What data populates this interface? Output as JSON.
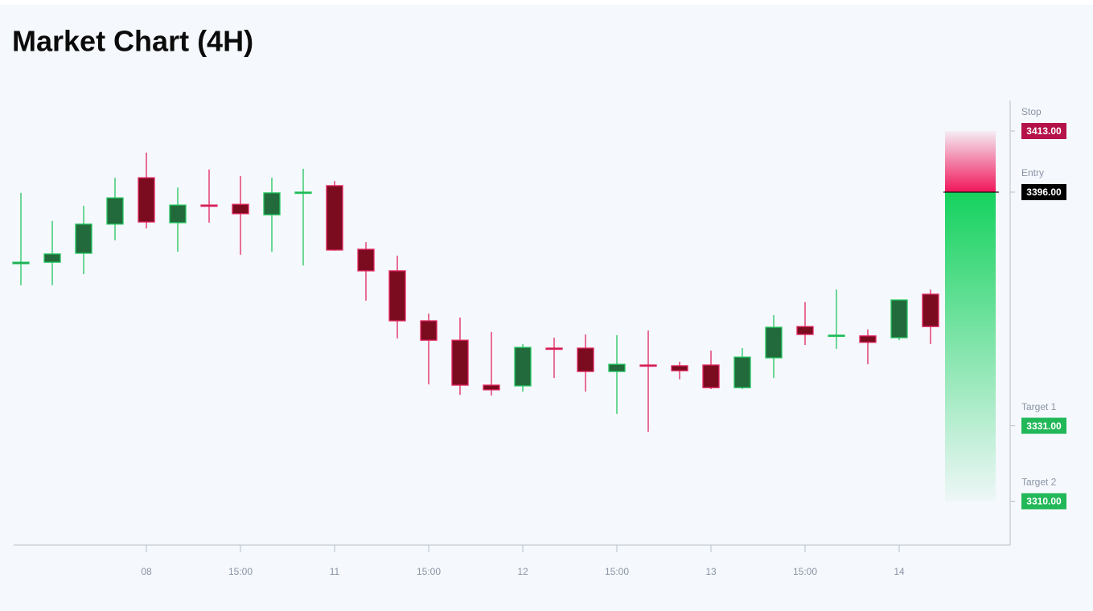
{
  "chart_data": {
    "type": "candlestick",
    "title": "Market Chart (4H)",
    "categories": [
      null,
      null,
      null,
      null,
      "08",
      null,
      null,
      "15:00",
      null,
      null,
      "11",
      null,
      null,
      "15:00",
      null,
      null,
      "12",
      null,
      null,
      "15:00",
      null,
      null,
      "13",
      null,
      null,
      "15:00",
      null,
      null,
      "14",
      null
    ],
    "open": [
      3376.1,
      3376.5,
      3379.0,
      3387.1,
      3400.0,
      3387.5,
      3392.4,
      3392.6,
      3389.7,
      3395.8,
      3397.8,
      3380.1,
      3374.1,
      3360.2,
      3354.8,
      3342.3,
      3342.1,
      3352.6,
      3352.6,
      3346.1,
      3347.9,
      3347.7,
      3347.9,
      3341.6,
      3349.9,
      3358.6,
      3356.0,
      3356.0,
      3355.5,
      3367.6
    ],
    "high": [
      3395.8,
      3388.0,
      3392.2,
      3400.0,
      3407.0,
      3397.3,
      3402.3,
      3400.5,
      3400.0,
      3402.5,
      3399.1,
      3382.1,
      3378.3,
      3362.2,
      3361.1,
      3357.1,
      3353.7,
      3355.5,
      3356.4,
      3356.2,
      3357.5,
      3348.8,
      3351.9,
      3352.6,
      3361.8,
      3365.4,
      3368.9,
      3357.8,
      3366.0,
      3368.9
    ],
    "low": [
      3370.1,
      3370.1,
      3373.2,
      3382.6,
      3385.9,
      3379.4,
      3387.5,
      3378.6,
      3379.4,
      3375.6,
      3379.7,
      3365.8,
      3355.3,
      3342.5,
      3339.6,
      3339.4,
      3340.5,
      3344.3,
      3340.5,
      3334.3,
      3329.3,
      3343.9,
      3341.2,
      3341.2,
      3344.3,
      3353.5,
      3352.4,
      3348.1,
      3354.8,
      3353.7
    ],
    "close": [
      3376.5,
      3378.8,
      3387.1,
      3394.4,
      3387.7,
      3392.4,
      3392.2,
      3390.0,
      3395.8,
      3396.0,
      3379.9,
      3374.1,
      3360.2,
      3354.8,
      3342.3,
      3341.0,
      3352.8,
      3352.4,
      3346.1,
      3348.1,
      3347.7,
      3346.3,
      3341.6,
      3350.1,
      3358.4,
      3356.4,
      3356.2,
      3354.2,
      3366.0,
      3358.6
    ],
    "up_color": "#22c55e",
    "down_color": "#e0245e",
    "ylim": [
      3297.8,
      3421.5
    ],
    "levels": [
      {
        "name": "Stop",
        "value": 3413,
        "label": "3413.00",
        "color": "#b5124a"
      },
      {
        "name": "Entry",
        "value": 3396,
        "label": "3396.00",
        "color": "#000000"
      },
      {
        "name": "Target 1",
        "value": 3331,
        "label": "3331.00",
        "color": "#22b859"
      },
      {
        "name": "Target 2",
        "value": 3310,
        "label": "3310.00",
        "color": "#22b859"
      }
    ]
  }
}
